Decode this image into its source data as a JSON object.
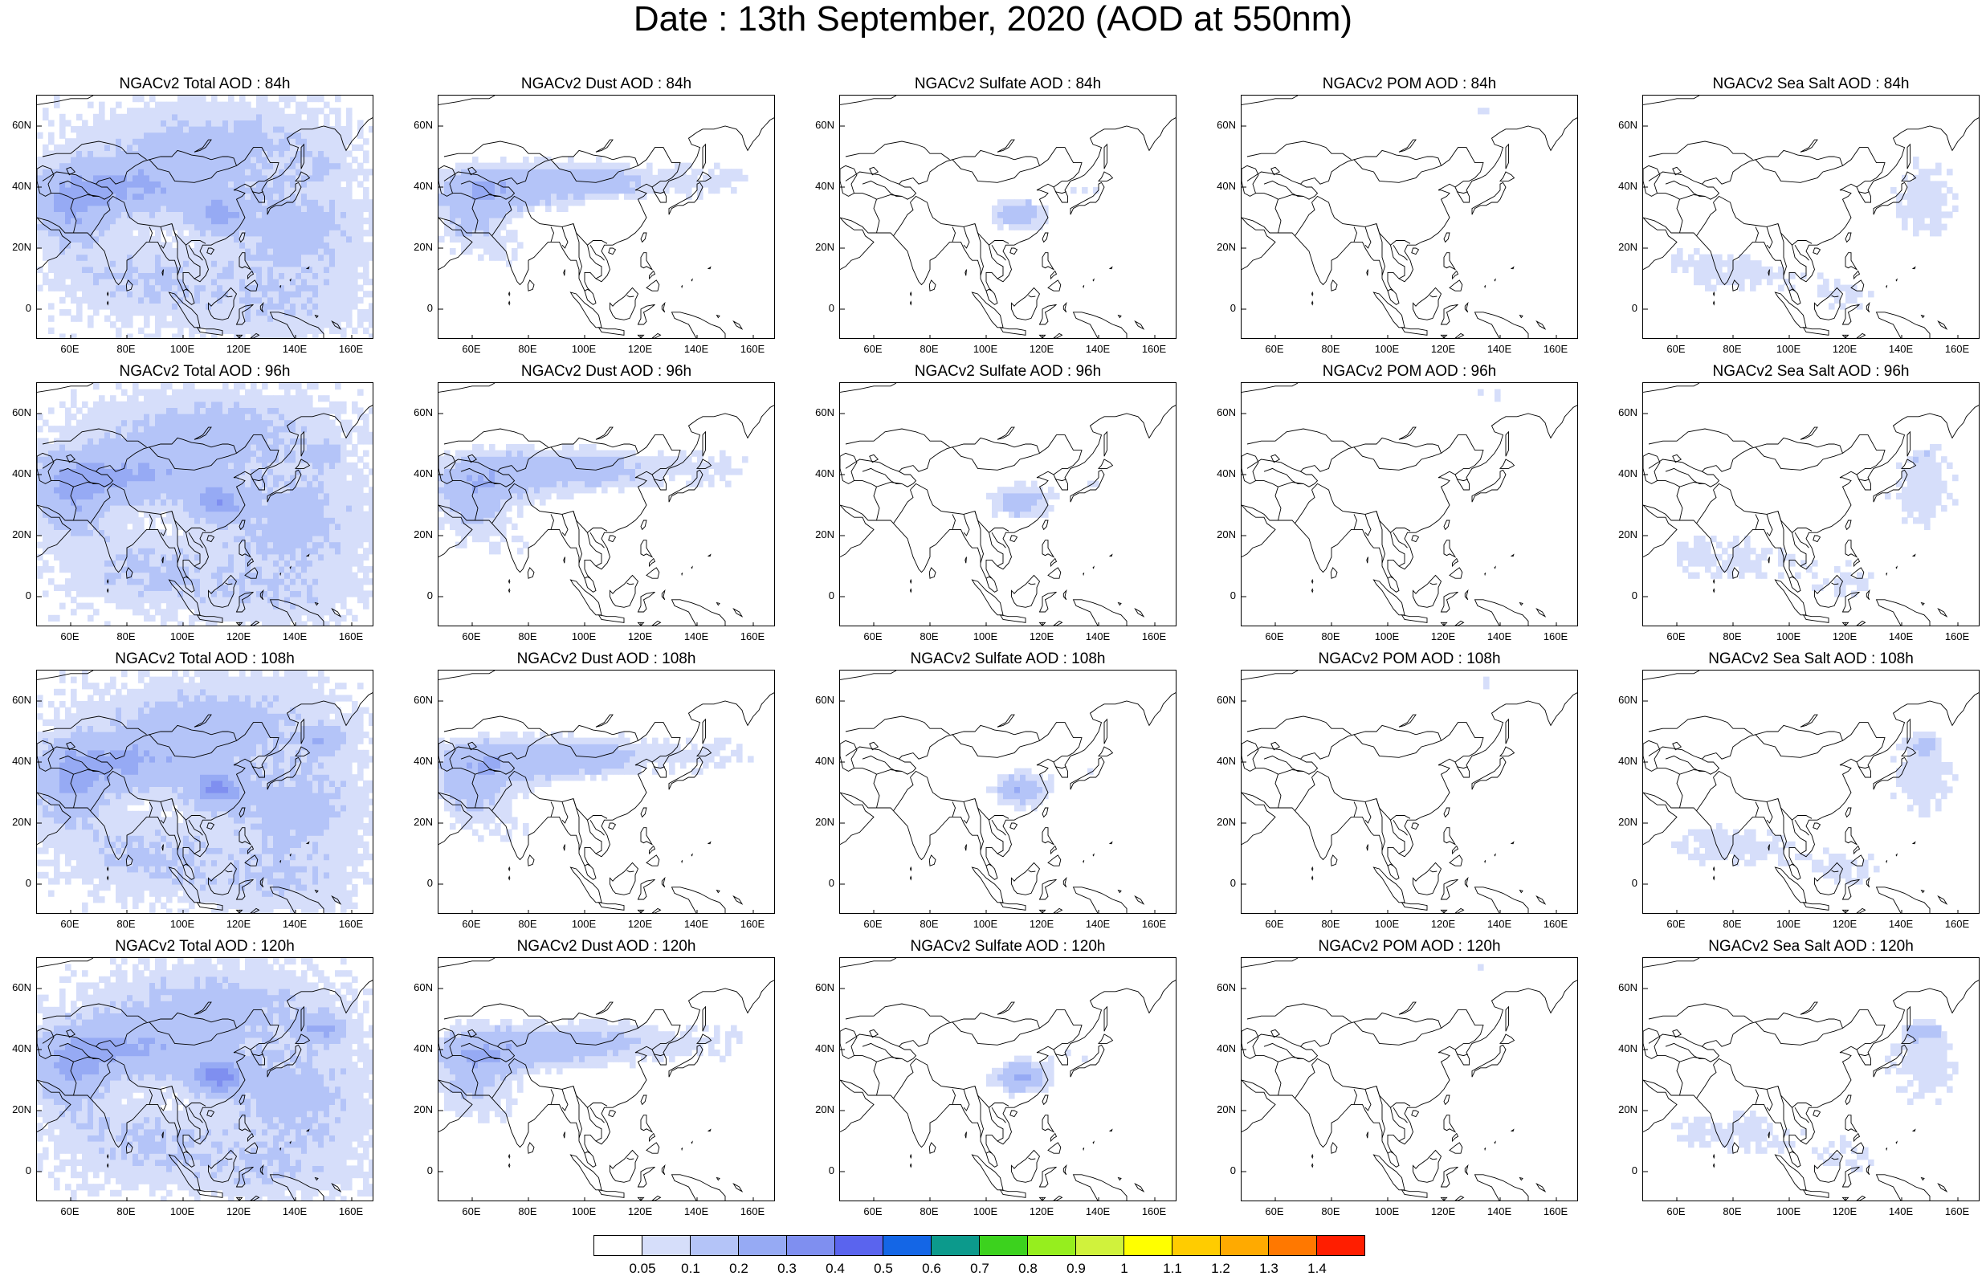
{
  "title": "Date : 13th September, 2020 (AOD at 550nm)",
  "map": {
    "lat_ticks": [
      "60N",
      "40N",
      "20N",
      "0"
    ],
    "lon_ticks": [
      "60E",
      "80E",
      "100E",
      "120E",
      "140E",
      "160E"
    ]
  },
  "rows": [
    [
      "NGACv2 Total AOD : 84h",
      "NGACv2 Dust AOD : 84h",
      "NGACv2 Sulfate AOD : 84h",
      "NGACv2 POM AOD : 84h",
      "NGACv2 Sea Salt AOD : 84h"
    ],
    [
      "NGACv2 Total AOD : 96h",
      "NGACv2 Dust AOD : 96h",
      "NGACv2 Sulfate AOD : 96h",
      "NGACv2 POM AOD : 96h",
      "NGACv2 Sea Salt AOD : 96h"
    ],
    [
      "NGACv2 Total AOD : 108h",
      "NGACv2 Dust AOD : 108h",
      "NGACv2 Sulfate AOD : 108h",
      "NGACv2 POM AOD : 108h",
      "NGACv2 Sea Salt AOD : 108h"
    ],
    [
      "NGACv2 Total AOD : 120h",
      "NGACv2 Dust AOD : 120h",
      "NGACv2 Sulfate AOD : 120h",
      "NGACv2 POM AOD : 120h",
      "NGACv2 Sea Salt  AOD : 120h"
    ]
  ],
  "colorbar": {
    "labels": [
      "0.05",
      "0.1",
      "0.2",
      "0.3",
      "0.4",
      "0.5",
      "0.6",
      "0.7",
      "0.8",
      "0.9",
      "1",
      "1.1",
      "1.2",
      "1.3",
      "1.4"
    ],
    "colors": [
      "#ffffff",
      "#d6defa",
      "#b4c4f8",
      "#96aaf4",
      "#7f8ff0",
      "#5a64ee",
      "#1466e6",
      "#0c9a8c",
      "#3cd21e",
      "#96ee1e",
      "#d0f23c",
      "#ffff00",
      "#ffcc00",
      "#ffaa00",
      "#ff7800",
      "#ff1e00"
    ]
  }
}
